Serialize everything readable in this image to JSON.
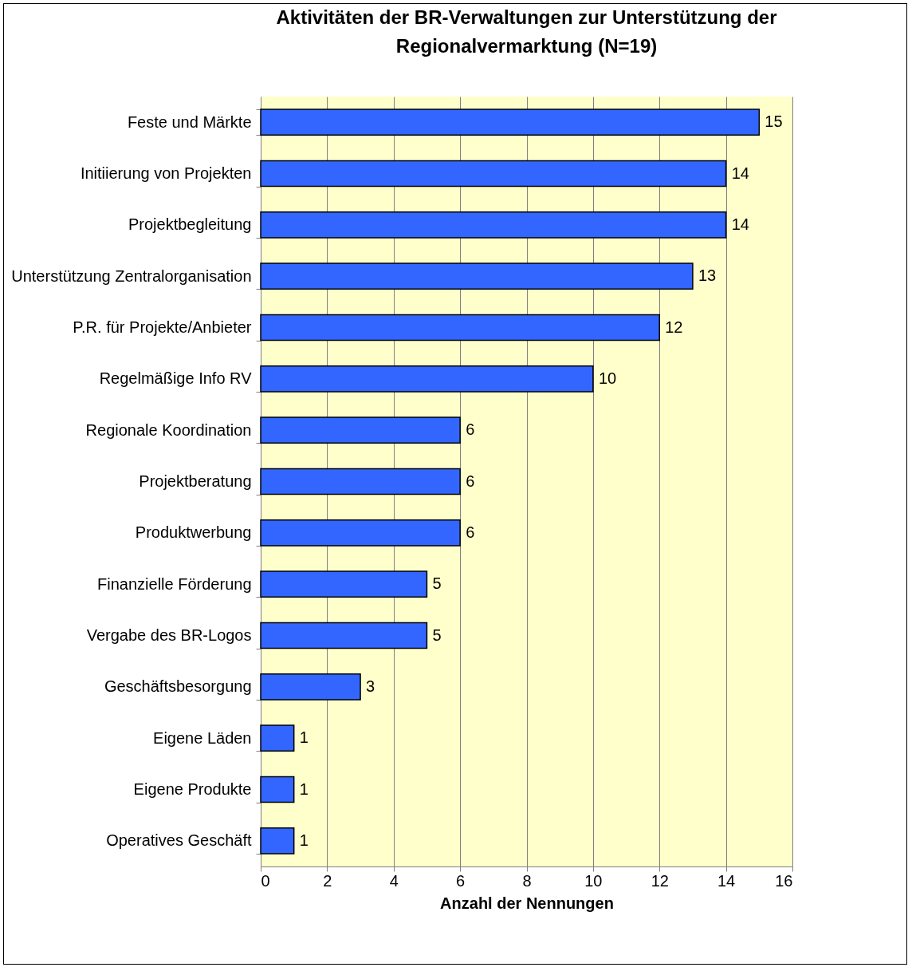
{
  "chart_data": {
    "type": "bar",
    "orientation": "horizontal",
    "title": "Aktivitäten der BR-Verwaltungen zur Unterstützung der Regionalvermarktung (N=19)",
    "xlabel": "Anzahl der Nennungen",
    "categories": [
      "Feste und Märkte",
      "Initiierung von Projekten",
      "Projektbegleitung",
      "Unterstützung Zentralorganisation",
      "P.R. für Projekte/Anbieter",
      "Regelmäßige Info RV",
      "Regionale Koordination",
      "Projektberatung",
      "Produktwerbung",
      "Finanzielle Förderung",
      "Vergabe des BR-Logos",
      "Geschäftsbesorgung",
      "Eigene Läden",
      "Eigene Produkte",
      "Operatives Geschäft"
    ],
    "values": [
      15,
      14,
      14,
      13,
      12,
      10,
      6,
      6,
      6,
      5,
      5,
      3,
      1,
      1,
      1
    ],
    "color": "#3366ff",
    "xlim": [
      0,
      16
    ],
    "xticks": [
      0,
      2,
      4,
      6,
      8,
      10,
      12,
      14,
      16
    ],
    "grid": "x",
    "data_labels": true
  }
}
